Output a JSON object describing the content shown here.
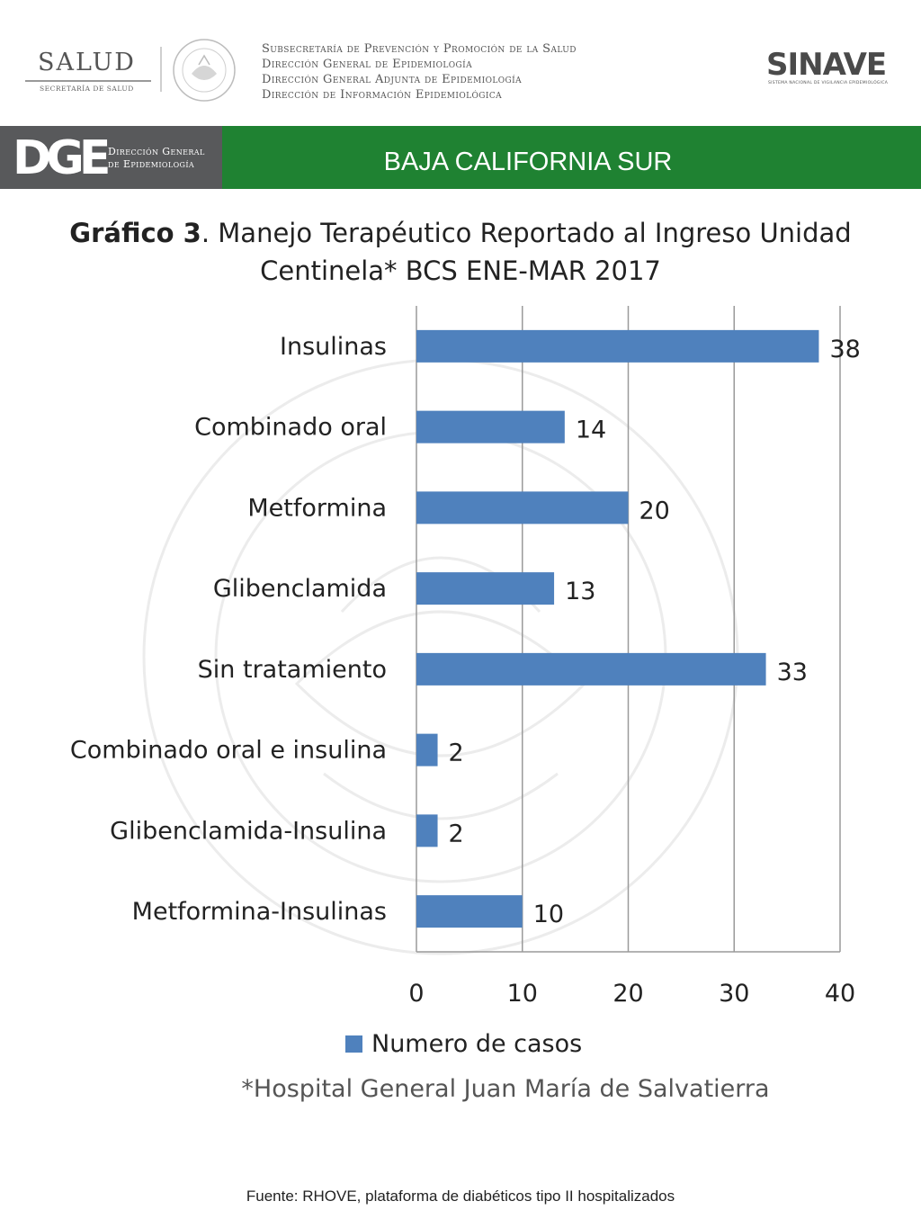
{
  "header": {
    "salud_logo_text": "SALUD",
    "salud_logo_sub": "SECRETARÍA DE SALUD",
    "gov_lines": [
      "Subsecretaría de Prevención y Promoción de la Salud",
      "Dirección General de Epidemiología",
      "Dirección General Adjunta de Epidemiología",
      "Dirección de Información Epidemiológica"
    ],
    "sinave_logo_text": "SINAVE",
    "sinave_sub": "SISTEMA NACIONAL DE VIGILANCIA EPIDEMIOLÓGICA"
  },
  "banner": {
    "dge_logo_text": "DGE",
    "dge_text_line1": "Dirección General",
    "dge_text_line2": "de Epidemiología",
    "region": "BAJA CALIFORNIA SUR"
  },
  "chart_data": {
    "type": "bar",
    "orientation": "horizontal",
    "title_bold": "Gráfico 3",
    "title_rest": ". Manejo Terapéutico Reportado al Ingreso Unidad Centinela* BCS ENE-MAR 2017",
    "categories": [
      "Insulinas",
      "Combinado oral",
      "Metformina",
      "Glibenclamida",
      "Sin tratamiento",
      "Combinado oral e insulina",
      "Glibenclamida-Insulina",
      "Metformina-Insulinas"
    ],
    "series": [
      {
        "name": "Numero de casos",
        "values": [
          38,
          14,
          20,
          13,
          33,
          2,
          2,
          10
        ],
        "color": "#4f81bd"
      }
    ],
    "xlim": [
      0,
      40
    ],
    "xticks": [
      0,
      10,
      20,
      30,
      40
    ],
    "grid": "vertical",
    "legend_position": "bottom",
    "data_labels": true
  },
  "footnote": "*Hospital General Juan María de Salvatierra",
  "source": "Fuente: RHOVE, plataforma de diabéticos tipo II hospitalizados"
}
